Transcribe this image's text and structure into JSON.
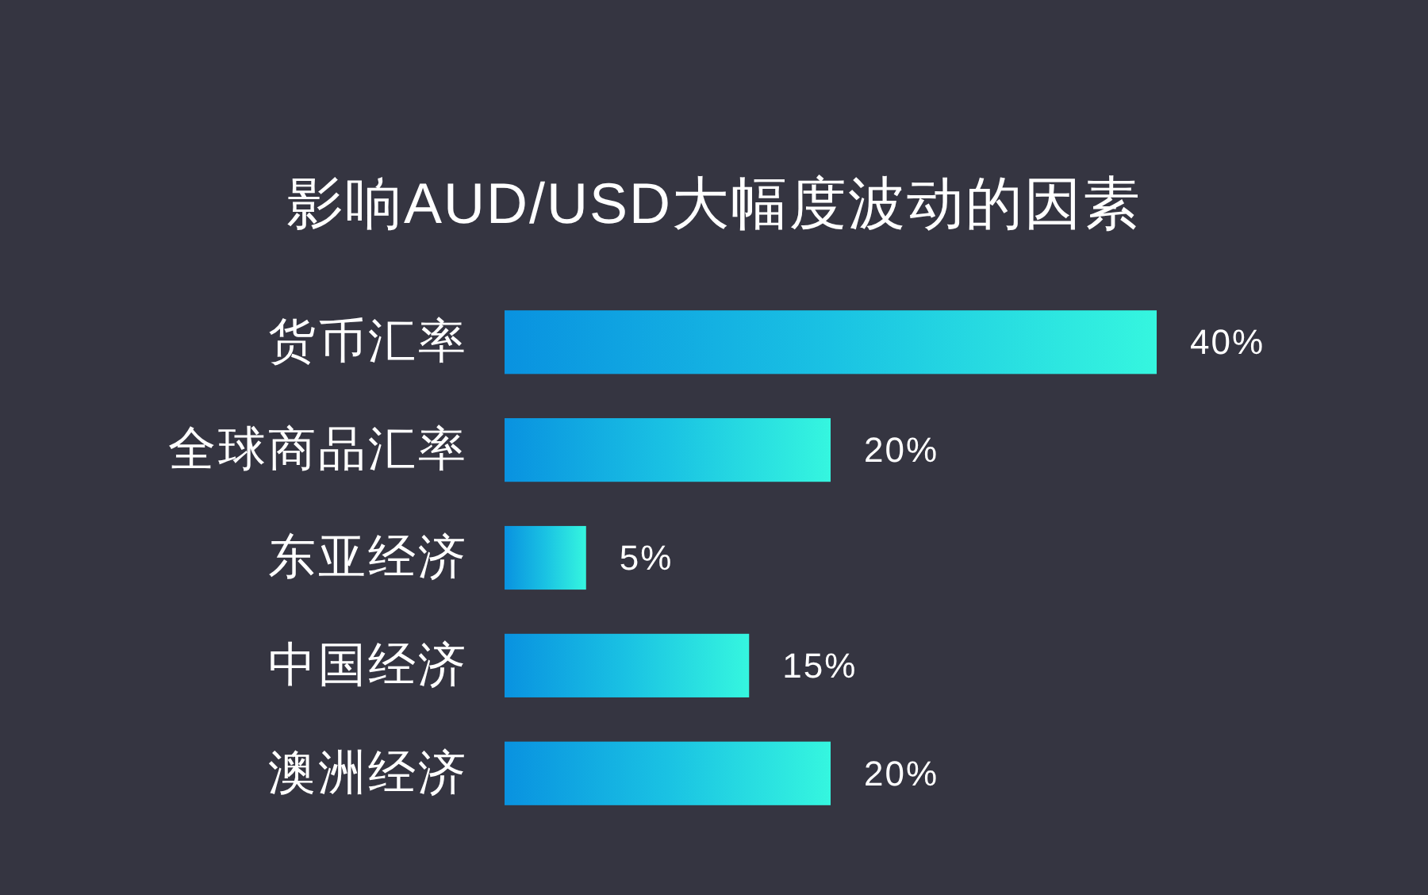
{
  "chart_data": {
    "type": "bar",
    "orientation": "horizontal",
    "title": "影响AUD/USD大幅度波动的因素",
    "categories": [
      "货币汇率",
      "全球商品汇率",
      "东亚经济",
      "中国经济",
      "澳洲经济"
    ],
    "values": [
      40,
      20,
      5,
      15,
      20
    ],
    "color": "#1ac2e3",
    "value_labels": [
      "40%",
      "20%",
      "5%",
      "15%",
      "20%"
    ]
  }
}
